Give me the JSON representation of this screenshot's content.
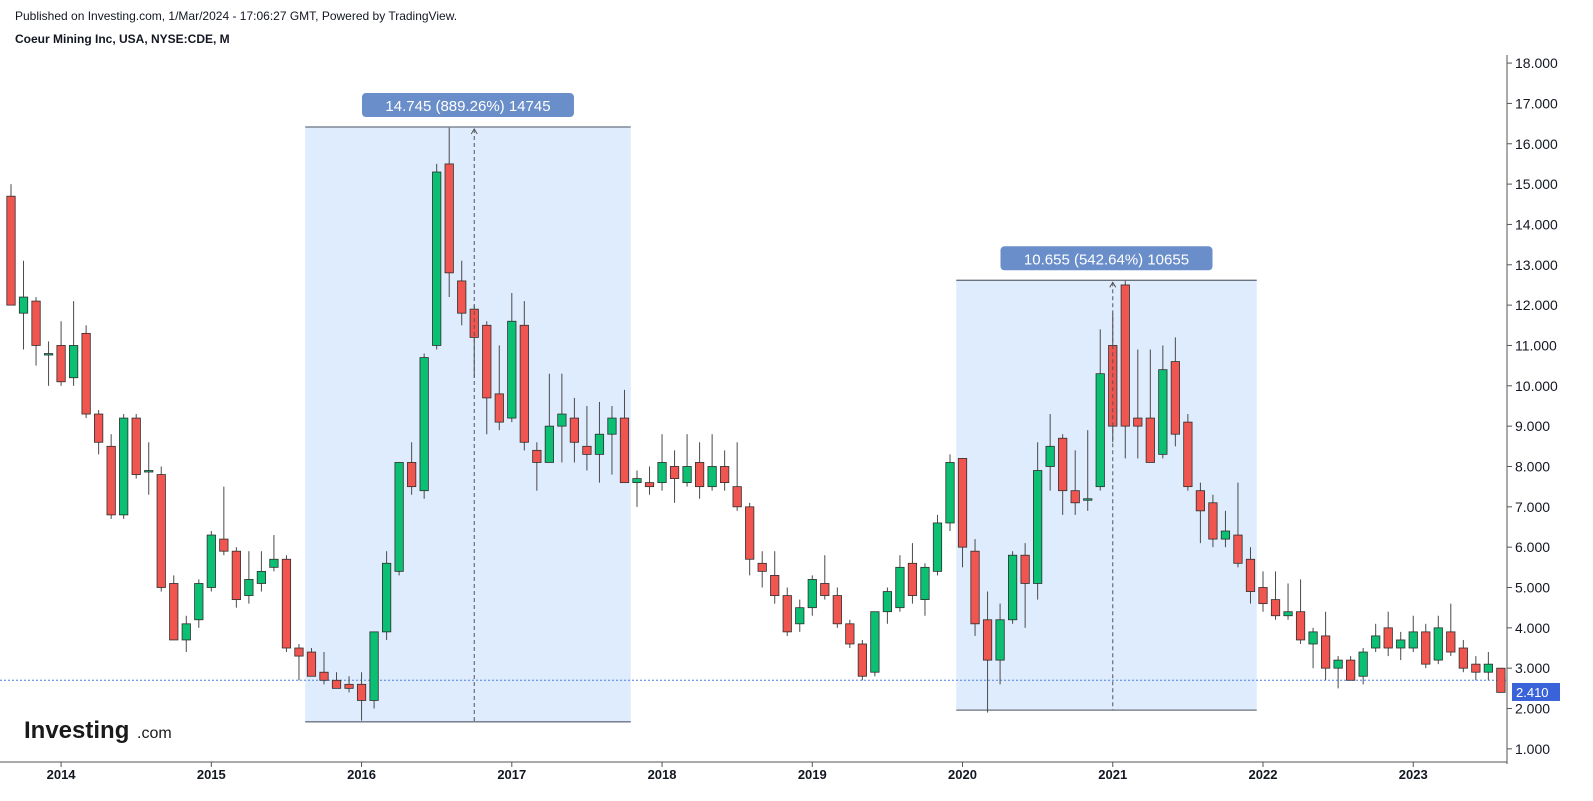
{
  "header": {
    "published": "Published on Investing.com, 1/Mar/2024 - 17:06:27 GMT, Powered by TradingView.",
    "title": "Coeur Mining Inc, USA, NYSE:CDE, M"
  },
  "logo": {
    "main": "Investing",
    "suffix": ".com"
  },
  "colors": {
    "up": "#0bbf73",
    "down": "#f0564f",
    "wick": "#4a4a4a",
    "zone_fill": "#deecfd",
    "callout_bg": "#6a8ec9",
    "price_line": "#4d7fe0",
    "price_label_bg": "#3a63d9"
  },
  "chart_data": {
    "type": "candlestick",
    "interval": "Monthly",
    "ylim": [
      0.7,
      18.2
    ],
    "yticks": [
      "1.000",
      "2.000",
      "3.000",
      "4.000",
      "5.000",
      "6.000",
      "7.000",
      "8.000",
      "9.000",
      "10.000",
      "11.000",
      "12.000",
      "13.000",
      "14.000",
      "15.000",
      "16.000",
      "17.000",
      "18.000"
    ],
    "xticks": [
      {
        "label": "2014",
        "date": "2014-01"
      },
      {
        "label": "2015",
        "date": "2015-01"
      },
      {
        "label": "2016",
        "date": "2016-01"
      },
      {
        "label": "2017",
        "date": "2017-01"
      },
      {
        "label": "2018",
        "date": "2018-01"
      },
      {
        "label": "2019",
        "date": "2019-01"
      },
      {
        "label": "2020",
        "date": "2020-01"
      },
      {
        "label": "2021",
        "date": "2021-01"
      },
      {
        "label": "2022",
        "date": "2022-01"
      },
      {
        "label": "2023",
        "date": "2023-01"
      }
    ],
    "x_start": "2013-09",
    "last_price": "2.410",
    "last_price_value": 2.41,
    "price_line_value": 2.7,
    "candles": [
      {
        "date": "2013-09",
        "o": 14.7,
        "h": 15.0,
        "l": 12.0,
        "c": 12.0
      },
      {
        "date": "2013-10",
        "o": 11.8,
        "h": 13.1,
        "l": 10.9,
        "c": 12.2
      },
      {
        "date": "2013-11",
        "o": 12.1,
        "h": 12.2,
        "l": 10.5,
        "c": 11.0
      },
      {
        "date": "2013-12",
        "o": 10.8,
        "h": 11.1,
        "l": 10.0,
        "c": 10.8
      },
      {
        "date": "2014-01",
        "o": 11.0,
        "h": 11.6,
        "l": 10.0,
        "c": 10.1
      },
      {
        "date": "2014-02",
        "o": 10.2,
        "h": 12.1,
        "l": 10.0,
        "c": 11.0
      },
      {
        "date": "2014-03",
        "o": 11.3,
        "h": 11.5,
        "l": 9.2,
        "c": 9.3
      },
      {
        "date": "2014-04",
        "o": 9.3,
        "h": 9.4,
        "l": 8.3,
        "c": 8.6
      },
      {
        "date": "2014-05",
        "o": 8.5,
        "h": 8.8,
        "l": 6.7,
        "c": 6.8
      },
      {
        "date": "2014-06",
        "o": 6.8,
        "h": 9.3,
        "l": 6.7,
        "c": 9.2
      },
      {
        "date": "2014-07",
        "o": 9.2,
        "h": 9.3,
        "l": 7.7,
        "c": 7.8
      },
      {
        "date": "2014-08",
        "o": 7.9,
        "h": 8.6,
        "l": 7.3,
        "c": 7.9
      },
      {
        "date": "2014-09",
        "o": 7.8,
        "h": 8.0,
        "l": 4.9,
        "c": 5.0
      },
      {
        "date": "2014-10",
        "o": 5.1,
        "h": 5.3,
        "l": 3.7,
        "c": 3.7
      },
      {
        "date": "2014-11",
        "o": 3.7,
        "h": 4.3,
        "l": 3.4,
        "c": 4.1
      },
      {
        "date": "2014-12",
        "o": 4.2,
        "h": 5.2,
        "l": 4.0,
        "c": 5.1
      },
      {
        "date": "2015-01",
        "o": 5.0,
        "h": 6.4,
        "l": 4.9,
        "c": 6.3
      },
      {
        "date": "2015-02",
        "o": 6.2,
        "h": 7.5,
        "l": 5.8,
        "c": 5.9
      },
      {
        "date": "2015-03",
        "o": 5.9,
        "h": 6.0,
        "l": 4.5,
        "c": 4.7
      },
      {
        "date": "2015-04",
        "o": 4.8,
        "h": 5.9,
        "l": 4.6,
        "c": 5.2
      },
      {
        "date": "2015-05",
        "o": 5.1,
        "h": 5.9,
        "l": 4.9,
        "c": 5.4
      },
      {
        "date": "2015-06",
        "o": 5.5,
        "h": 6.3,
        "l": 5.4,
        "c": 5.7
      },
      {
        "date": "2015-07",
        "o": 5.7,
        "h": 5.8,
        "l": 3.4,
        "c": 3.5
      },
      {
        "date": "2015-08",
        "o": 3.5,
        "h": 3.6,
        "l": 2.7,
        "c": 3.3
      },
      {
        "date": "2015-09",
        "o": 3.4,
        "h": 3.5,
        "l": 2.8,
        "c": 2.8
      },
      {
        "date": "2015-10",
        "o": 2.9,
        "h": 3.4,
        "l": 2.6,
        "c": 2.7
      },
      {
        "date": "2015-11",
        "o": 2.7,
        "h": 2.9,
        "l": 2.5,
        "c": 2.5
      },
      {
        "date": "2015-12",
        "o": 2.6,
        "h": 2.8,
        "l": 2.4,
        "c": 2.5
      },
      {
        "date": "2016-01",
        "o": 2.6,
        "h": 2.9,
        "l": 1.7,
        "c": 2.2
      },
      {
        "date": "2016-02",
        "o": 2.2,
        "h": 3.9,
        "l": 2.0,
        "c": 3.9
      },
      {
        "date": "2016-03",
        "o": 3.9,
        "h": 5.9,
        "l": 3.7,
        "c": 5.6
      },
      {
        "date": "2016-04",
        "o": 5.4,
        "h": 8.1,
        "l": 5.3,
        "c": 8.1
      },
      {
        "date": "2016-05",
        "o": 8.1,
        "h": 8.6,
        "l": 7.3,
        "c": 7.5
      },
      {
        "date": "2016-06",
        "o": 7.4,
        "h": 10.8,
        "l": 7.2,
        "c": 10.7
      },
      {
        "date": "2016-07",
        "o": 11.0,
        "h": 15.5,
        "l": 10.9,
        "c": 15.3
      },
      {
        "date": "2016-08",
        "o": 15.5,
        "h": 16.4,
        "l": 12.2,
        "c": 12.8
      },
      {
        "date": "2016-09",
        "o": 12.6,
        "h": 13.1,
        "l": 11.5,
        "c": 11.8
      },
      {
        "date": "2016-10",
        "o": 11.9,
        "h": 12.0,
        "l": 10.2,
        "c": 11.2
      },
      {
        "date": "2016-11",
        "o": 11.5,
        "h": 11.6,
        "l": 8.8,
        "c": 9.7
      },
      {
        "date": "2016-12",
        "o": 9.8,
        "h": 11.0,
        "l": 8.9,
        "c": 9.1
      },
      {
        "date": "2017-01",
        "o": 9.2,
        "h": 12.3,
        "l": 9.1,
        "c": 11.6
      },
      {
        "date": "2017-02",
        "o": 11.5,
        "h": 12.1,
        "l": 8.4,
        "c": 8.6
      },
      {
        "date": "2017-03",
        "o": 8.4,
        "h": 8.6,
        "l": 7.4,
        "c": 8.1
      },
      {
        "date": "2017-04",
        "o": 8.1,
        "h": 10.3,
        "l": 8.1,
        "c": 9.0
      },
      {
        "date": "2017-05",
        "o": 9.0,
        "h": 10.3,
        "l": 8.1,
        "c": 9.3
      },
      {
        "date": "2017-06",
        "o": 9.2,
        "h": 9.7,
        "l": 8.1,
        "c": 8.6
      },
      {
        "date": "2017-07",
        "o": 8.5,
        "h": 9.5,
        "l": 7.9,
        "c": 8.3
      },
      {
        "date": "2017-08",
        "o": 8.3,
        "h": 9.6,
        "l": 7.6,
        "c": 8.8
      },
      {
        "date": "2017-09",
        "o": 8.8,
        "h": 9.5,
        "l": 7.8,
        "c": 9.2
      },
      {
        "date": "2017-10",
        "o": 9.2,
        "h": 9.9,
        "l": 7.6,
        "c": 7.6
      },
      {
        "date": "2017-11",
        "o": 7.6,
        "h": 7.9,
        "l": 7.0,
        "c": 7.7
      },
      {
        "date": "2017-12",
        "o": 7.6,
        "h": 8.0,
        "l": 7.3,
        "c": 7.5
      },
      {
        "date": "2018-01",
        "o": 7.6,
        "h": 8.8,
        "l": 7.4,
        "c": 8.1
      },
      {
        "date": "2018-02",
        "o": 8.0,
        "h": 8.4,
        "l": 7.1,
        "c": 7.7
      },
      {
        "date": "2018-03",
        "o": 7.6,
        "h": 8.8,
        "l": 7.5,
        "c": 8.0
      },
      {
        "date": "2018-04",
        "o": 8.1,
        "h": 8.6,
        "l": 7.2,
        "c": 7.5
      },
      {
        "date": "2018-05",
        "o": 7.5,
        "h": 8.8,
        "l": 7.4,
        "c": 8.0
      },
      {
        "date": "2018-06",
        "o": 8.0,
        "h": 8.4,
        "l": 7.4,
        "c": 7.6
      },
      {
        "date": "2018-07",
        "o": 7.5,
        "h": 8.6,
        "l": 6.9,
        "c": 7.0
      },
      {
        "date": "2018-08",
        "o": 7.0,
        "h": 7.1,
        "l": 5.3,
        "c": 5.7
      },
      {
        "date": "2018-09",
        "o": 5.6,
        "h": 5.9,
        "l": 5.0,
        "c": 5.4
      },
      {
        "date": "2018-10",
        "o": 5.3,
        "h": 5.9,
        "l": 4.6,
        "c": 4.8
      },
      {
        "date": "2018-11",
        "o": 4.8,
        "h": 5.0,
        "l": 3.8,
        "c": 3.9
      },
      {
        "date": "2018-12",
        "o": 4.1,
        "h": 4.7,
        "l": 3.9,
        "c": 4.5
      },
      {
        "date": "2019-01",
        "o": 4.5,
        "h": 5.3,
        "l": 4.3,
        "c": 5.2
      },
      {
        "date": "2019-02",
        "o": 5.1,
        "h": 5.8,
        "l": 4.7,
        "c": 4.8
      },
      {
        "date": "2019-03",
        "o": 4.8,
        "h": 5.0,
        "l": 4.0,
        "c": 4.1
      },
      {
        "date": "2019-04",
        "o": 4.1,
        "h": 4.2,
        "l": 3.5,
        "c": 3.6
      },
      {
        "date": "2019-05",
        "o": 3.6,
        "h": 3.7,
        "l": 2.7,
        "c": 2.8
      },
      {
        "date": "2019-06",
        "o": 2.9,
        "h": 4.4,
        "l": 2.8,
        "c": 4.4
      },
      {
        "date": "2019-07",
        "o": 4.4,
        "h": 5.0,
        "l": 4.1,
        "c": 4.9
      },
      {
        "date": "2019-08",
        "o": 4.5,
        "h": 5.8,
        "l": 4.4,
        "c": 5.5
      },
      {
        "date": "2019-09",
        "o": 5.6,
        "h": 6.1,
        "l": 4.6,
        "c": 4.8
      },
      {
        "date": "2019-10",
        "o": 4.7,
        "h": 5.6,
        "l": 4.3,
        "c": 5.5
      },
      {
        "date": "2019-11",
        "o": 5.4,
        "h": 6.8,
        "l": 5.3,
        "c": 6.6
      },
      {
        "date": "2019-12",
        "o": 6.6,
        "h": 8.3,
        "l": 6.4,
        "c": 8.1
      },
      {
        "date": "2020-01",
        "o": 8.2,
        "h": 8.2,
        "l": 5.5,
        "c": 6.0
      },
      {
        "date": "2020-02",
        "o": 5.9,
        "h": 6.2,
        "l": 3.8,
        "c": 4.1
      },
      {
        "date": "2020-03",
        "o": 4.2,
        "h": 4.9,
        "l": 1.9,
        "c": 3.2
      },
      {
        "date": "2020-04",
        "o": 3.2,
        "h": 4.6,
        "l": 2.6,
        "c": 4.2
      },
      {
        "date": "2020-05",
        "o": 4.2,
        "h": 5.9,
        "l": 4.1,
        "c": 5.8
      },
      {
        "date": "2020-06",
        "o": 5.8,
        "h": 6.1,
        "l": 4.0,
        "c": 5.1
      },
      {
        "date": "2020-07",
        "o": 5.1,
        "h": 8.6,
        "l": 4.7,
        "c": 7.9
      },
      {
        "date": "2020-08",
        "o": 8.0,
        "h": 9.3,
        "l": 7.4,
        "c": 8.5
      },
      {
        "date": "2020-09",
        "o": 8.7,
        "h": 8.8,
        "l": 6.8,
        "c": 7.4
      },
      {
        "date": "2020-10",
        "o": 7.4,
        "h": 8.4,
        "l": 6.8,
        "c": 7.1
      },
      {
        "date": "2020-11",
        "o": 7.2,
        "h": 8.9,
        "l": 6.9,
        "c": 7.2
      },
      {
        "date": "2020-12",
        "o": 7.5,
        "h": 11.4,
        "l": 7.4,
        "c": 10.3
      },
      {
        "date": "2021-01",
        "o": 11.0,
        "h": 11.8,
        "l": 8.6,
        "c": 9.0
      },
      {
        "date": "2021-02",
        "o": 12.5,
        "h": 12.6,
        "l": 8.2,
        "c": 9.0
      },
      {
        "date": "2021-03",
        "o": 9.2,
        "h": 10.9,
        "l": 8.2,
        "c": 9.0
      },
      {
        "date": "2021-04",
        "o": 9.2,
        "h": 10.9,
        "l": 8.1,
        "c": 8.1
      },
      {
        "date": "2021-05",
        "o": 8.3,
        "h": 11.0,
        "l": 8.2,
        "c": 10.4
      },
      {
        "date": "2021-06",
        "o": 10.6,
        "h": 11.2,
        "l": 8.5,
        "c": 8.8
      },
      {
        "date": "2021-07",
        "o": 9.1,
        "h": 9.3,
        "l": 7.4,
        "c": 7.5
      },
      {
        "date": "2021-08",
        "o": 7.4,
        "h": 7.6,
        "l": 6.1,
        "c": 6.9
      },
      {
        "date": "2021-09",
        "o": 7.1,
        "h": 7.3,
        "l": 6.0,
        "c": 6.2
      },
      {
        "date": "2021-10",
        "o": 6.2,
        "h": 6.9,
        "l": 6.0,
        "c": 6.4
      },
      {
        "date": "2021-11",
        "o": 6.3,
        "h": 7.6,
        "l": 5.5,
        "c": 5.6
      },
      {
        "date": "2021-12",
        "o": 5.7,
        "h": 6.0,
        "l": 4.6,
        "c": 4.9
      },
      {
        "date": "2022-01",
        "o": 5.0,
        "h": 5.4,
        "l": 4.4,
        "c": 4.6
      },
      {
        "date": "2022-02",
        "o": 4.7,
        "h": 5.4,
        "l": 4.2,
        "c": 4.3
      },
      {
        "date": "2022-03",
        "o": 4.3,
        "h": 5.1,
        "l": 4.2,
        "c": 4.4
      },
      {
        "date": "2022-04",
        "o": 4.4,
        "h": 5.2,
        "l": 3.6,
        "c": 3.7
      },
      {
        "date": "2022-05",
        "o": 3.6,
        "h": 4.0,
        "l": 3.0,
        "c": 3.9
      },
      {
        "date": "2022-06",
        "o": 3.8,
        "h": 4.4,
        "l": 2.7,
        "c": 3.0
      },
      {
        "date": "2022-07",
        "o": 3.0,
        "h": 3.3,
        "l": 2.5,
        "c": 3.2
      },
      {
        "date": "2022-08",
        "o": 3.2,
        "h": 3.3,
        "l": 2.8,
        "c": 2.7
      },
      {
        "date": "2022-09",
        "o": 2.8,
        "h": 3.5,
        "l": 2.6,
        "c": 3.4
      },
      {
        "date": "2022-10",
        "o": 3.5,
        "h": 4.1,
        "l": 3.4,
        "c": 3.8
      },
      {
        "date": "2022-11",
        "o": 4.0,
        "h": 4.4,
        "l": 3.3,
        "c": 3.5
      },
      {
        "date": "2022-12",
        "o": 3.5,
        "h": 3.9,
        "l": 3.2,
        "c": 3.7
      },
      {
        "date": "2023-01",
        "o": 3.5,
        "h": 4.3,
        "l": 3.4,
        "c": 3.9
      },
      {
        "date": "2023-02",
        "o": 3.9,
        "h": 4.1,
        "l": 3.0,
        "c": 3.1
      },
      {
        "date": "2023-03",
        "o": 3.2,
        "h": 4.3,
        "l": 3.1,
        "c": 4.0
      },
      {
        "date": "2023-04",
        "o": 3.9,
        "h": 4.6,
        "l": 3.3,
        "c": 3.4
      },
      {
        "date": "2023-05",
        "o": 3.5,
        "h": 3.7,
        "l": 2.9,
        "c": 3.0
      },
      {
        "date": "2023-06",
        "o": 3.1,
        "h": 3.3,
        "l": 2.7,
        "c": 2.9
      },
      {
        "date": "2023-07",
        "o": 2.9,
        "h": 3.4,
        "l": 2.7,
        "c": 3.1
      },
      {
        "date": "2023-08",
        "o": 3.0,
        "h": 3.0,
        "l": 2.4,
        "c": 2.4
      }
    ],
    "annotations": [
      {
        "label": "14.745 (889.26%) 14745",
        "from_date": "2015-09",
        "to_date": "2017-10",
        "low": 1.67,
        "high": 16.415,
        "arrow_date": "2016-10"
      },
      {
        "label": "10.655 (542.64%) 10655",
        "from_date": "2020-01",
        "to_date": "2021-12",
        "low": 1.96,
        "high": 12.615,
        "arrow_date": "2021-01"
      }
    ]
  }
}
